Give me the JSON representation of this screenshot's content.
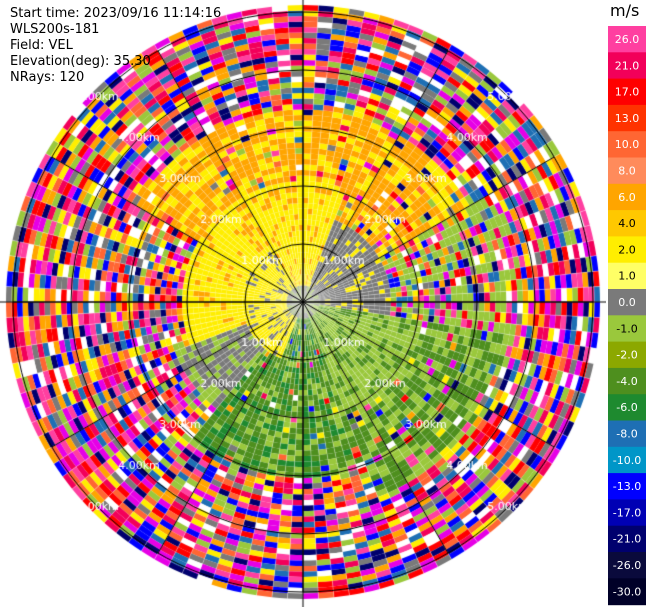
{
  "header": {
    "start_time": "Start time: 2023/09/16 11:14:16",
    "instrument": "WLS200s-181",
    "field": "Field: VEL",
    "elevation": "Elevation(deg): 35.30",
    "nrays": "NRays: 120"
  },
  "colorbar": {
    "units": "m/s",
    "ticks": [
      "26.0",
      "21.0",
      "17.0",
      "13.0",
      "10.0",
      "8.0",
      "6.0",
      "4.0",
      "2.0",
      "1.0",
      "0.0",
      "-1.0",
      "-2.0",
      "-4.0",
      "-6.0",
      "-8.0",
      "-10.0",
      "-13.0",
      "-17.0",
      "-21.0",
      "-26.0",
      "-30.0"
    ],
    "colors": [
      "#ff3fa0",
      "#f2005a",
      "#ff0000",
      "#ff3300",
      "#ff6633",
      "#ff8b5b",
      "#ffa500",
      "#ffc800",
      "#ffee00",
      "#ffff66",
      "#7a7a7a",
      "#9ac83c",
      "#8ca800",
      "#4e8f1e",
      "#1e8a2f",
      "#1e6fb4",
      "#0096c8",
      "#0000ff",
      "#0000b4",
      "#00006e",
      "#0a0a3c",
      "#000028"
    ]
  },
  "range_ring_labels": [
    "1.00km",
    "2.00km",
    "3.00km",
    "4.00km",
    "5.00km"
  ],
  "palette": {
    "yellow": "#ffee00",
    "orange": "#ffa500",
    "gray": "#7a7a7a",
    "light_green": "#9ac83c",
    "green": "#1e8a2f",
    "dark_green": "#4e8f1e",
    "noise": [
      "#ff3fa0",
      "#f2005a",
      "#ff0000",
      "#ff6633",
      "#ffa500",
      "#ffee00",
      "#0000ff",
      "#00006e",
      "#7a7a7a",
      "#1e6fb4",
      "#9ac83c",
      "#ffffff",
      "#e600e6"
    ]
  }
}
